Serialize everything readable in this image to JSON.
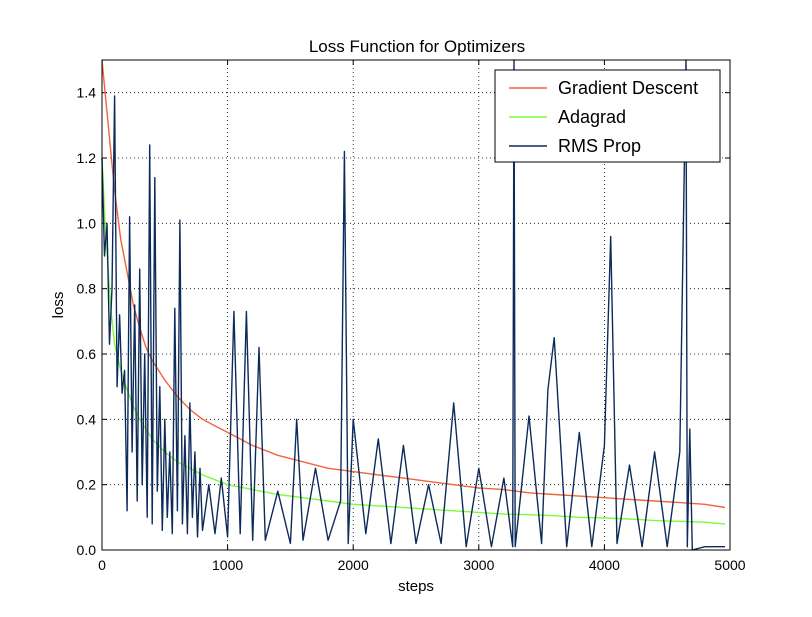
{
  "chart_data": {
    "type": "line",
    "title": "Loss Function for Optimizers",
    "xlabel": "steps",
    "ylabel": "loss",
    "xlim": [
      0,
      5000
    ],
    "ylim": [
      0.0,
      1.5
    ],
    "xticks": [
      "0",
      "1000",
      "2000",
      "3000",
      "4000",
      "5000"
    ],
    "yticks": [
      "0.0",
      "0.2",
      "0.4",
      "0.6",
      "0.8",
      "1.0",
      "1.2",
      "1.4"
    ],
    "grid": true,
    "legend_position": "top-right",
    "series": [
      {
        "name": "Gradient Descent",
        "color": "#f0643c",
        "x": [
          0,
          25,
          50,
          75,
          100,
          150,
          200,
          250,
          300,
          350,
          400,
          450,
          500,
          600,
          700,
          800,
          900,
          1000,
          1200,
          1400,
          1600,
          1800,
          2000,
          2200,
          2400,
          2600,
          2800,
          3000,
          3200,
          3400,
          3600,
          3800,
          4000,
          4200,
          4400,
          4600,
          4800,
          4960
        ],
        "y": [
          1.5,
          1.4,
          1.3,
          1.2,
          1.1,
          0.95,
          0.85,
          0.75,
          0.68,
          0.62,
          0.58,
          0.55,
          0.52,
          0.47,
          0.43,
          0.4,
          0.38,
          0.36,
          0.32,
          0.29,
          0.27,
          0.25,
          0.24,
          0.23,
          0.22,
          0.21,
          0.2,
          0.19,
          0.185,
          0.175,
          0.17,
          0.165,
          0.16,
          0.155,
          0.15,
          0.145,
          0.14,
          0.13
        ]
      },
      {
        "name": "Adagrad",
        "color": "#7cfc3a",
        "x": [
          0,
          25,
          50,
          75,
          100,
          150,
          200,
          250,
          300,
          350,
          400,
          450,
          500,
          600,
          700,
          800,
          900,
          1000,
          1200,
          1400,
          1600,
          1800,
          2000,
          2200,
          2400,
          2600,
          2800,
          3000,
          3200,
          3400,
          3600,
          3800,
          4000,
          4200,
          4400,
          4600,
          4800,
          4960
        ],
        "y": [
          1.2,
          1.0,
          0.85,
          0.72,
          0.63,
          0.55,
          0.49,
          0.44,
          0.4,
          0.37,
          0.34,
          0.32,
          0.3,
          0.27,
          0.25,
          0.23,
          0.215,
          0.2,
          0.185,
          0.17,
          0.16,
          0.15,
          0.14,
          0.135,
          0.13,
          0.125,
          0.12,
          0.115,
          0.11,
          0.108,
          0.105,
          0.1,
          0.098,
          0.095,
          0.09,
          0.088,
          0.085,
          0.08
        ]
      },
      {
        "name": "RMS Prop",
        "color": "#0d2b5a",
        "x": [
          0,
          20,
          40,
          60,
          80,
          100,
          120,
          140,
          160,
          180,
          200,
          220,
          240,
          260,
          280,
          300,
          320,
          340,
          360,
          380,
          400,
          420,
          440,
          460,
          480,
          500,
          520,
          540,
          560,
          580,
          600,
          620,
          640,
          660,
          680,
          700,
          720,
          740,
          760,
          780,
          800,
          850,
          900,
          950,
          1000,
          1050,
          1100,
          1150,
          1200,
          1250,
          1300,
          1400,
          1500,
          1550,
          1600,
          1700,
          1800,
          1900,
          1930,
          1960,
          2000,
          2100,
          2200,
          2300,
          2400,
          2500,
          2600,
          2700,
          2800,
          2900,
          3000,
          3100,
          3200,
          3270,
          3280,
          3290,
          3400,
          3500,
          3550,
          3600,
          3700,
          3800,
          3900,
          4000,
          4050,
          4100,
          4200,
          4300,
          4400,
          4500,
          4600,
          4650,
          4660,
          4680,
          4700,
          4800,
          4900,
          4960
        ],
        "y": [
          1.2,
          0.9,
          1.0,
          0.63,
          0.8,
          1.39,
          0.5,
          0.72,
          0.48,
          0.55,
          0.12,
          1.02,
          0.3,
          0.75,
          0.15,
          0.86,
          0.2,
          0.6,
          0.1,
          1.24,
          0.08,
          1.14,
          0.18,
          0.5,
          0.06,
          0.4,
          0.1,
          0.3,
          0.05,
          0.74,
          0.12,
          1.01,
          0.08,
          0.35,
          0.05,
          0.45,
          0.1,
          0.3,
          0.04,
          0.25,
          0.06,
          0.2,
          0.05,
          0.22,
          0.04,
          0.73,
          0.05,
          0.73,
          0.03,
          0.62,
          0.03,
          0.18,
          0.02,
          0.4,
          0.03,
          0.25,
          0.03,
          0.15,
          1.22,
          0.02,
          0.4,
          0.05,
          0.34,
          0.02,
          0.32,
          0.02,
          0.2,
          0.02,
          0.45,
          0.01,
          0.25,
          0.01,
          0.22,
          0.01,
          1.5,
          0.01,
          0.41,
          0.02,
          0.49,
          0.65,
          0.01,
          0.36,
          0.01,
          0.32,
          0.96,
          0.02,
          0.26,
          0.01,
          0.3,
          0.01,
          0.3,
          1.5,
          0.01,
          0.37,
          0.0,
          0.01,
          0.01,
          0.01
        ]
      }
    ]
  }
}
